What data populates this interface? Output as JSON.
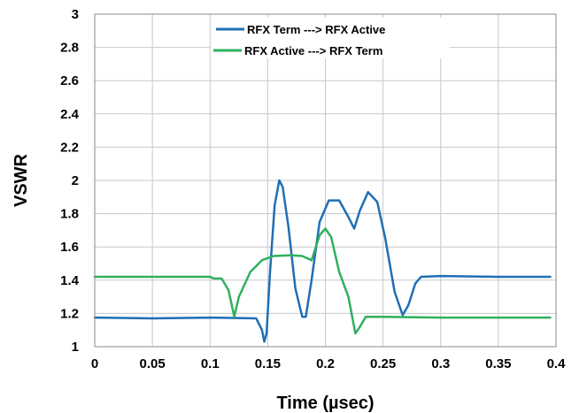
{
  "chart_data": {
    "type": "line",
    "title": "",
    "xlabel": "Time (µsec)",
    "ylabel": "VSWR",
    "xlim": [
      0,
      0.4
    ],
    "ylim": [
      1,
      3
    ],
    "x_ticks": [
      "0",
      "0.05",
      "0.1",
      "0.15",
      "0.2",
      "0.25",
      "0.3",
      "0.35",
      "0.4"
    ],
    "y_ticks": [
      "1",
      "1.2",
      "1.4",
      "1.6",
      "1.8",
      "2",
      "2.2",
      "2.4",
      "2.6",
      "2.8",
      "3"
    ],
    "grid": true,
    "legend_position": "top-center",
    "series": [
      {
        "name": "RFX Term ---> RFX Active",
        "color": "#1f6fb5",
        "points": [
          [
            0,
            1.175
          ],
          [
            0.05,
            1.17
          ],
          [
            0.1,
            1.175
          ],
          [
            0.14,
            1.17
          ],
          [
            0.145,
            1.1
          ],
          [
            0.147,
            1.03
          ],
          [
            0.149,
            1.08
          ],
          [
            0.152,
            1.45
          ],
          [
            0.156,
            1.85
          ],
          [
            0.16,
            2.0
          ],
          [
            0.163,
            1.96
          ],
          [
            0.168,
            1.72
          ],
          [
            0.174,
            1.35
          ],
          [
            0.18,
            1.18
          ],
          [
            0.183,
            1.18
          ],
          [
            0.188,
            1.4
          ],
          [
            0.195,
            1.75
          ],
          [
            0.203,
            1.88
          ],
          [
            0.212,
            1.88
          ],
          [
            0.22,
            1.78
          ],
          [
            0.225,
            1.71
          ],
          [
            0.23,
            1.82
          ],
          [
            0.237,
            1.93
          ],
          [
            0.245,
            1.87
          ],
          [
            0.252,
            1.65
          ],
          [
            0.26,
            1.33
          ],
          [
            0.267,
            1.19
          ],
          [
            0.272,
            1.25
          ],
          [
            0.278,
            1.38
          ],
          [
            0.283,
            1.42
          ],
          [
            0.3,
            1.425
          ],
          [
            0.35,
            1.42
          ],
          [
            0.395,
            1.42
          ]
        ]
      },
      {
        "name": "RFX Active ---> RFX Term",
        "color": "#2fb05e",
        "points": [
          [
            0,
            1.42
          ],
          [
            0.05,
            1.42
          ],
          [
            0.1,
            1.42
          ],
          [
            0.103,
            1.41
          ],
          [
            0.11,
            1.41
          ],
          [
            0.116,
            1.34
          ],
          [
            0.121,
            1.18
          ],
          [
            0.125,
            1.3
          ],
          [
            0.135,
            1.45
          ],
          [
            0.145,
            1.52
          ],
          [
            0.155,
            1.545
          ],
          [
            0.17,
            1.55
          ],
          [
            0.18,
            1.545
          ],
          [
            0.188,
            1.52
          ],
          [
            0.195,
            1.67
          ],
          [
            0.2,
            1.71
          ],
          [
            0.205,
            1.66
          ],
          [
            0.212,
            1.45
          ],
          [
            0.22,
            1.3
          ],
          [
            0.226,
            1.08
          ],
          [
            0.23,
            1.12
          ],
          [
            0.235,
            1.18
          ],
          [
            0.25,
            1.18
          ],
          [
            0.3,
            1.175
          ],
          [
            0.35,
            1.175
          ],
          [
            0.395,
            1.175
          ]
        ]
      }
    ]
  }
}
